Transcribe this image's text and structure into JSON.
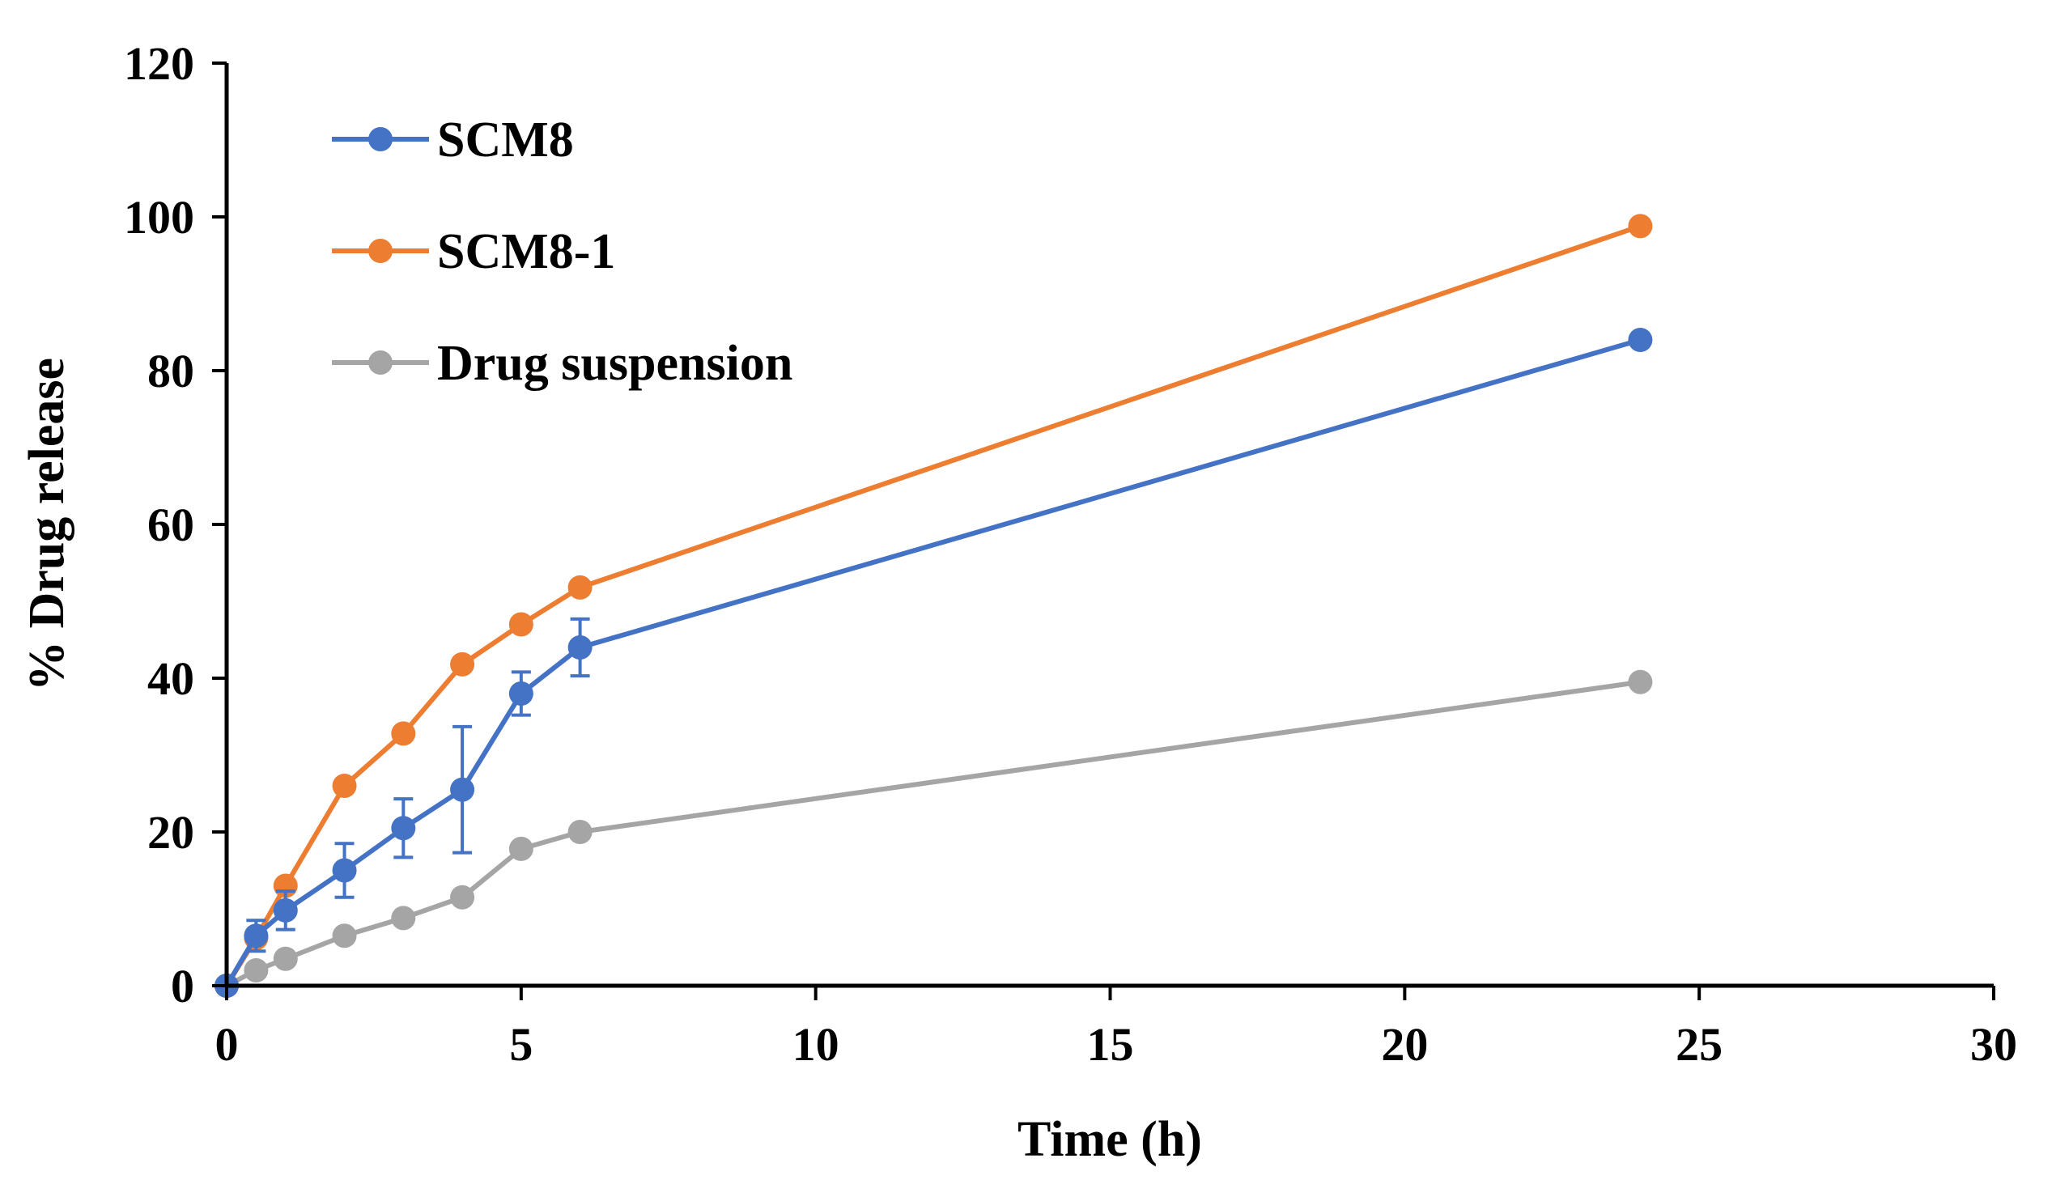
{
  "chart_data": {
    "type": "line",
    "title": "",
    "xlabel": "Time (h)",
    "ylabel": "% Drug release",
    "xlim": [
      0,
      30
    ],
    "ylim": [
      0,
      120
    ],
    "xticks": [
      0,
      5,
      10,
      15,
      20,
      25,
      30
    ],
    "yticks": [
      0,
      20,
      40,
      60,
      80,
      100,
      120
    ],
    "xtick_labels": [
      "0",
      "5",
      "10",
      "15",
      "20",
      "25",
      "30"
    ],
    "ytick_labels": [
      "0",
      "20",
      "40",
      "60",
      "80",
      "100",
      "120"
    ],
    "grid": false,
    "legend_position": "top-left",
    "x": [
      0,
      0.5,
      1,
      2,
      3,
      4,
      5,
      6,
      24
    ],
    "series": [
      {
        "name": "SCM8",
        "color": "#4472C4",
        "values": [
          0,
          6.5,
          9.8,
          15,
          20.5,
          25.5,
          38,
          44,
          84
        ],
        "error": [
          0,
          2,
          2.5,
          3.5,
          3.8,
          8.2,
          2.8,
          3.7,
          0
        ]
      },
      {
        "name": "SCM8-1",
        "color": "#ED7D31",
        "values": [
          0,
          6.2,
          13,
          26,
          32.8,
          41.8,
          47,
          51.8,
          98.8
        ]
      },
      {
        "name": "Drug suspension",
        "color": "#A5A5A5",
        "values": [
          0,
          2,
          3.5,
          6.5,
          8.8,
          11.5,
          17.8,
          20,
          39.5
        ]
      }
    ]
  }
}
